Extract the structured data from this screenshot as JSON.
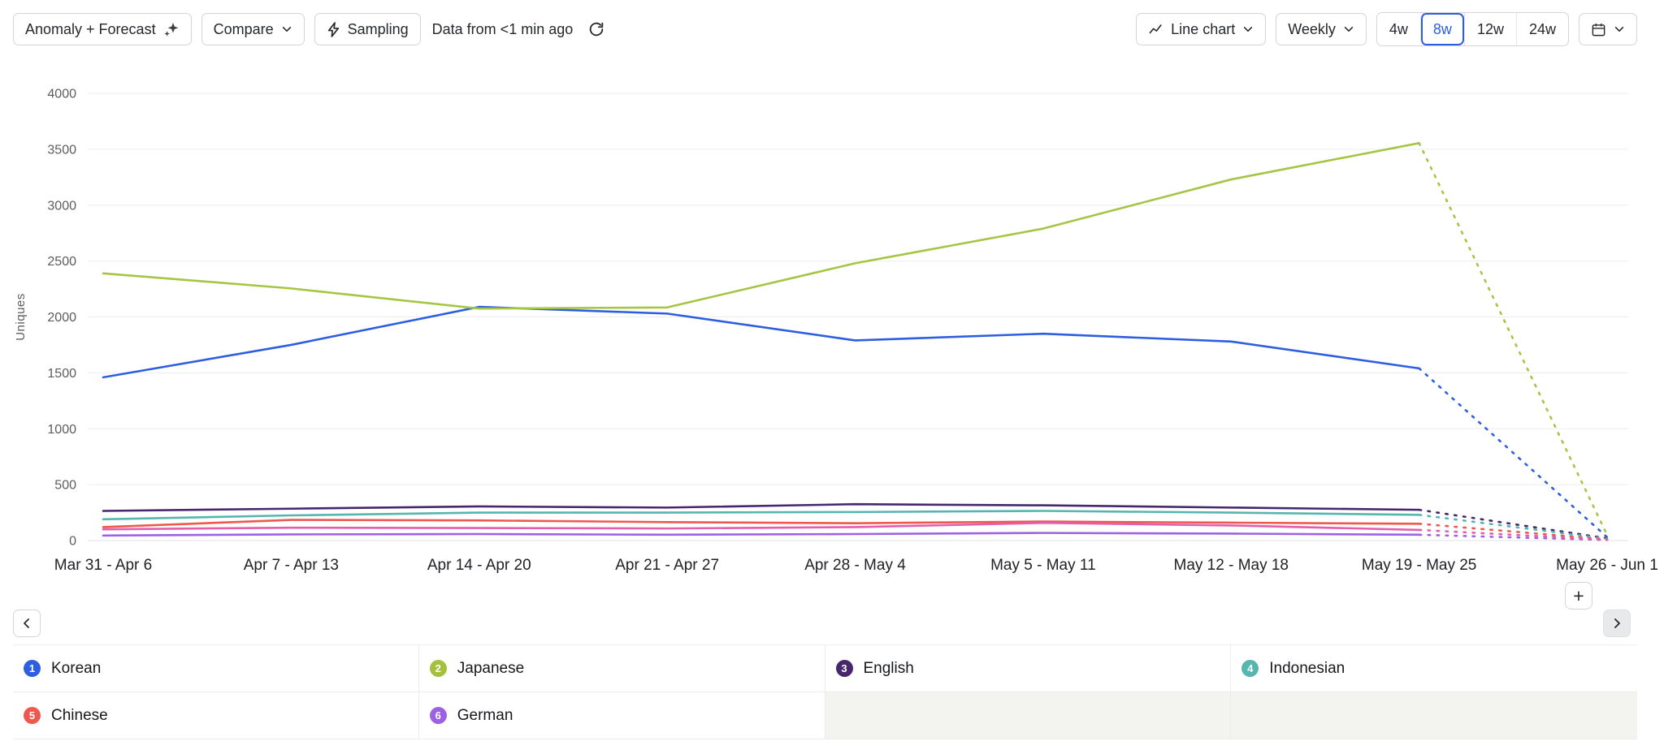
{
  "toolbar": {
    "anomaly_forecast_label": "Anomaly + Forecast",
    "compare_label": "Compare",
    "sampling_label": "Sampling",
    "data_freshness": "Data from <1 min ago",
    "chart_type_label": "Line chart",
    "interval_label": "Weekly",
    "range_options": [
      "4w",
      "8w",
      "12w",
      "24w"
    ],
    "range_selected": "8w"
  },
  "icons": {
    "ai_sparkle_icon": "✦",
    "chevron_down_icon": "⌄",
    "lightning_icon": "⚡",
    "refresh_icon": "↻",
    "line_chart_icon": "📈",
    "calendar_icon": "📅",
    "chevron_left_icon": "‹",
    "chevron_right_icon": "›",
    "plus_icon": "+"
  },
  "colors": {
    "accent_blue": "#2e5ee0",
    "button_border": "#d4d6d1",
    "gridline": "#ededed",
    "empty_cell_bg": "#f3f4f0"
  },
  "chart_data": {
    "type": "line",
    "title": "",
    "ylabel": "Uniques",
    "xlabel": "",
    "ylim": [
      0,
      4000
    ],
    "ytick_step": 500,
    "grid": true,
    "legend_position": "bottom-table",
    "forecast_from_index": 7,
    "forecast_style": "dotted",
    "categories": [
      "Mar 31 - Apr 6",
      "Apr 7 - Apr 13",
      "Apr 14 - Apr 20",
      "Apr 21 - Apr 27",
      "Apr 28 - May 4",
      "May 5 - May 11",
      "May 12 - May 18",
      "May 19 - May 25",
      "May 26 - Jun 1"
    ],
    "series": [
      {
        "name": "Korean",
        "color": "#2e5ee0",
        "values": [
          1460,
          1750,
          2090,
          2030,
          1790,
          1850,
          1780,
          1540,
          30
        ]
      },
      {
        "name": "Japanese",
        "color": "#a6c544",
        "values": [
          2390,
          2255,
          2075,
          2085,
          2480,
          2790,
          3230,
          3555,
          50
        ]
      },
      {
        "name": "English",
        "color": "#46276e",
        "values": [
          265,
          285,
          305,
          295,
          325,
          315,
          295,
          275,
          20
        ]
      },
      {
        "name": "Indonesian",
        "color": "#56b6af",
        "values": [
          190,
          225,
          250,
          250,
          255,
          265,
          250,
          230,
          15
        ]
      },
      {
        "name": "Chinese",
        "color": "#ee584e",
        "values": [
          120,
          185,
          180,
          165,
          155,
          170,
          160,
          150,
          10
        ]
      },
      {
        "name": "German",
        "color": "#9d62e3",
        "values": [
          45,
          55,
          58,
          52,
          58,
          68,
          62,
          52,
          5
        ]
      },
      {
        "name": "",
        "color": "#e35ead",
        "values": [
          100,
          115,
          112,
          108,
          120,
          158,
          135,
          95,
          8
        ]
      }
    ]
  },
  "legend": {
    "items": [
      {
        "number": "1",
        "label": "Korean",
        "color": "#2e5ee0"
      },
      {
        "number": "2",
        "label": "Japanese",
        "color": "#a3c13d"
      },
      {
        "number": "3",
        "label": "English",
        "color": "#46276e"
      },
      {
        "number": "4",
        "label": "Indonesian",
        "color": "#56b6af"
      },
      {
        "number": "5",
        "label": "Chinese",
        "color": "#ee584e"
      },
      {
        "number": "6",
        "label": "German",
        "color": "#9d62e3"
      }
    ]
  }
}
